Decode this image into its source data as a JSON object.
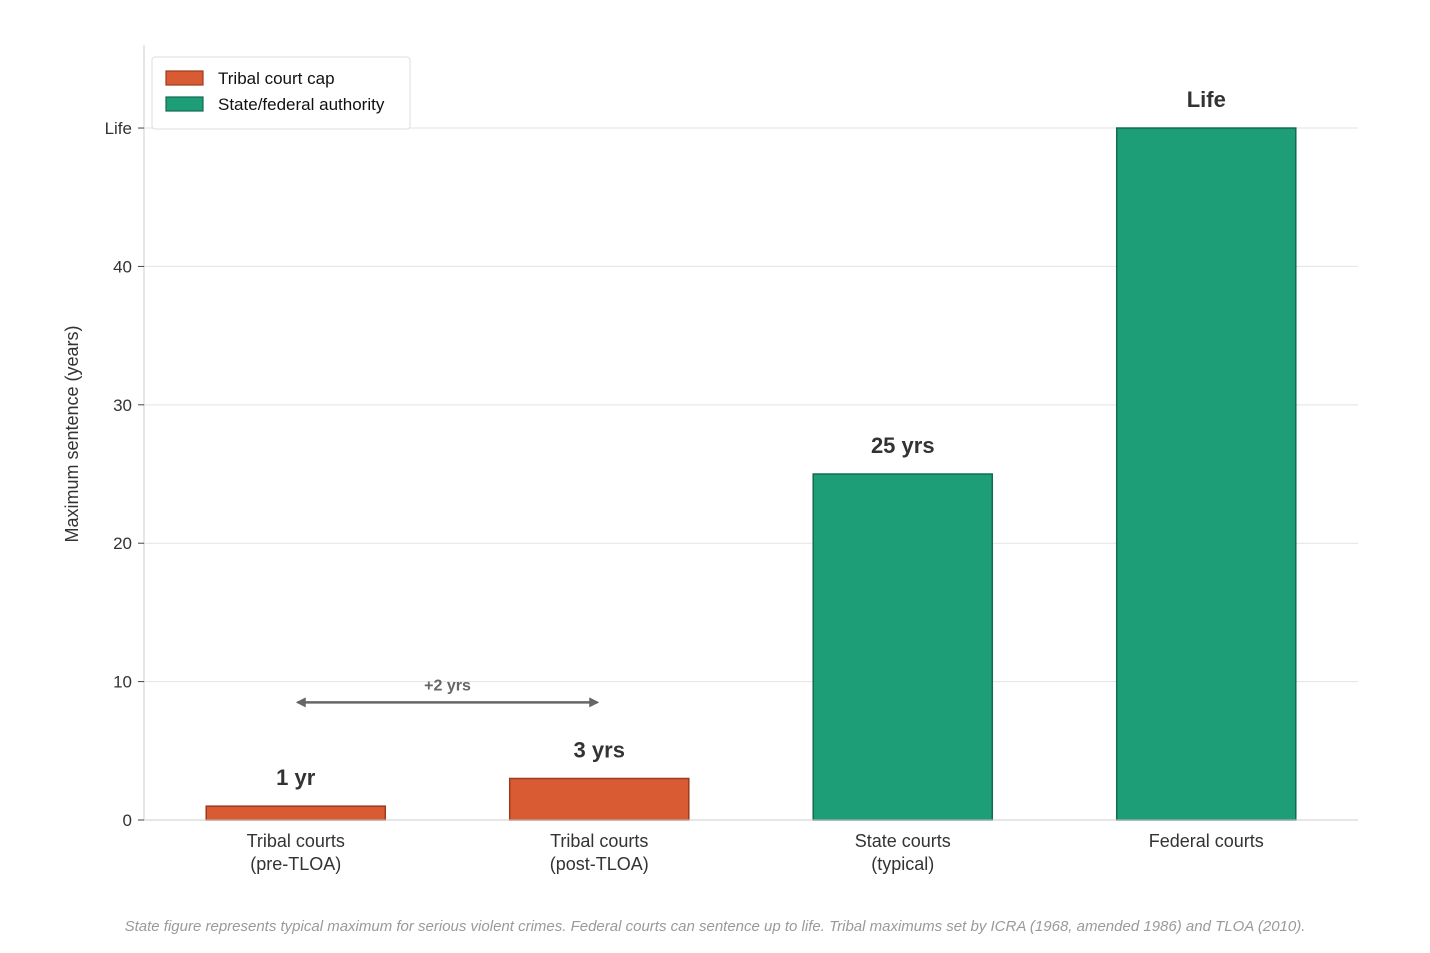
{
  "chart_data": {
    "type": "bar",
    "categories": [
      [
        "Tribal courts",
        "(pre-TLOA)"
      ],
      [
        "Tribal courts",
        "(post-TLOA)"
      ],
      [
        "State courts",
        "(typical)"
      ],
      [
        "Federal courts"
      ]
    ],
    "values": [
      1,
      3,
      25,
      50
    ],
    "value_labels": [
      "1 yr",
      "3 yrs",
      "25 yrs",
      "Life"
    ],
    "bar_groups": [
      "Tribal court cap",
      "Tribal court cap",
      "State/federal authority",
      "State/federal authority"
    ],
    "ylabel": "Maximum sentence (years)",
    "ylim": [
      0,
      56
    ],
    "yticks": [
      {
        "value": 0,
        "label": "0"
      },
      {
        "value": 10,
        "label": "10"
      },
      {
        "value": 20,
        "label": "20"
      },
      {
        "value": 30,
        "label": "30"
      },
      {
        "value": 40,
        "label": "40"
      },
      {
        "value": 50,
        "label": "Life"
      }
    ],
    "grid": true,
    "legend": {
      "placement": "top-left",
      "entries": [
        {
          "name": "Tribal court cap",
          "color": "#d95b33",
          "edge": "#9e3a1c"
        },
        {
          "name": "State/federal authority",
          "color": "#1e9e76",
          "edge": "#136a50"
        }
      ]
    },
    "annotation": {
      "text": "+2 yrs",
      "from_category": 0,
      "to_category": 1,
      "y": 8.5
    },
    "footnote": "State figure represents typical maximum for serious violent crimes. Federal courts can sentence up to life. Tribal maximums set by ICRA (1968, amended 1986) and TLOA (2010)."
  }
}
